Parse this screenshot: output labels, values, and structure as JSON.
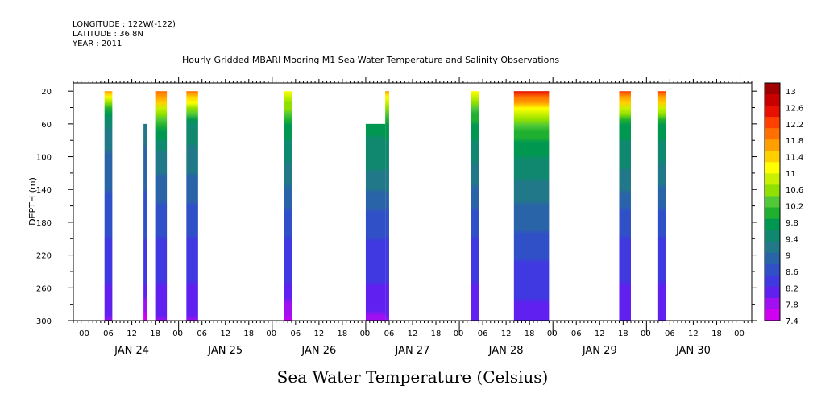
{
  "header": {
    "longitude": "LONGITUDE : 122W(-122)",
    "latitude": "LATITUDE : 36.8N",
    "year": "YEAR : 2011"
  },
  "chart_data": {
    "type": "heatmap",
    "title": "Hourly Gridded MBARI Mooring M1 Sea Water Temperature and Salinity Observations",
    "xlabel": "",
    "ylabel": "DEPTH (m)",
    "colorbar_title": "Sea Water Temperature (Celsius)",
    "y_ticks": [
      20,
      60,
      100,
      140,
      180,
      220,
      260,
      300
    ],
    "ylim": [
      300,
      10
    ],
    "x_hour_ticks": [
      "00",
      "06",
      "12",
      "18"
    ],
    "day_labels": [
      "JAN 24",
      "JAN 25",
      "JAN 26",
      "JAN 27",
      "JAN 28",
      "JAN 29",
      "JAN 30"
    ],
    "colorbar_levels": [
      13,
      12.6,
      12.2,
      11.8,
      11.4,
      11,
      10.6,
      10.2,
      9.8,
      9.4,
      9,
      8.6,
      8.2,
      7.8,
      7.4
    ],
    "colorbar_colors": [
      "#a00000",
      "#c80000",
      "#e81000",
      "#ff4000",
      "#ff7000",
      "#ffa000",
      "#ffd000",
      "#ffff00",
      "#c8f000",
      "#90e000",
      "#50c838",
      "#20b030",
      "#009850",
      "#108870",
      "#207888",
      "#2a64a8",
      "#3050c8",
      "#4038e0",
      "#6020f0",
      "#a010f0",
      "#d000f0"
    ],
    "colorbar_range": [
      7.4,
      13.2
    ],
    "data_blocks": [
      {
        "start": "JAN 24 05:00",
        "end": "JAN 24 07:00",
        "top_depth": 20,
        "profile": [
          [
            20,
            11.8
          ],
          [
            40,
            10.2
          ],
          [
            60,
            9.4
          ],
          [
            100,
            9.0
          ],
          [
            180,
            8.6
          ],
          [
            260,
            8.2
          ],
          [
            300,
            7.9
          ]
        ]
      },
      {
        "start": "JAN 24 15:00",
        "end": "JAN 24 16:00",
        "top_depth": 60,
        "profile": [
          [
            60,
            9.2
          ],
          [
            180,
            8.6
          ],
          [
            260,
            8.2
          ],
          [
            300,
            7.5
          ]
        ]
      },
      {
        "start": "JAN 24 18:00",
        "end": "JAN 24 21:00",
        "top_depth": 20,
        "profile": [
          [
            20,
            12.0
          ],
          [
            40,
            11.0
          ],
          [
            60,
            10.0
          ],
          [
            100,
            9.2
          ],
          [
            180,
            8.6
          ],
          [
            260,
            8.2
          ],
          [
            300,
            7.9
          ]
        ]
      },
      {
        "start": "JAN 25 02:00",
        "end": "JAN 25 05:00",
        "top_depth": 20,
        "profile": [
          [
            20,
            12.0
          ],
          [
            40,
            10.6
          ],
          [
            60,
            9.6
          ],
          [
            100,
            9.2
          ],
          [
            180,
            8.6
          ],
          [
            260,
            8.2
          ],
          [
            300,
            7.9
          ]
        ]
      },
      {
        "start": "JAN 26 03:00",
        "end": "JAN 26 05:00",
        "top_depth": 20,
        "profile": [
          [
            20,
            11.2
          ],
          [
            60,
            9.8
          ],
          [
            120,
            9.2
          ],
          [
            180,
            8.6
          ],
          [
            260,
            8.2
          ],
          [
            300,
            7.6
          ]
        ]
      },
      {
        "start": "JAN 27 00:00",
        "end": "JAN 27 05:00",
        "top_depth": 60,
        "profile": [
          [
            60,
            9.7
          ],
          [
            120,
            9.3
          ],
          [
            180,
            8.6
          ],
          [
            260,
            8.2
          ],
          [
            300,
            7.9
          ]
        ]
      },
      {
        "start": "JAN 27 05:00",
        "end": "JAN 27 06:00",
        "top_depth": 20,
        "profile": [
          [
            20,
            11.6
          ],
          [
            40,
            10.6
          ],
          [
            60,
            9.8
          ],
          [
            120,
            9.3
          ],
          [
            180,
            8.6
          ],
          [
            260,
            8.2
          ],
          [
            300,
            7.9
          ]
        ]
      },
      {
        "start": "JAN 28 03:00",
        "end": "JAN 28 05:00",
        "top_depth": 20,
        "profile": [
          [
            20,
            11.0
          ],
          [
            60,
            9.8
          ],
          [
            120,
            9.2
          ],
          [
            180,
            8.6
          ],
          [
            260,
            8.2
          ],
          [
            300,
            8.0
          ]
        ]
      },
      {
        "start": "JAN 28 14:00",
        "end": "JAN 28 23:00",
        "top_depth": 20,
        "profile": [
          [
            20,
            12.4
          ],
          [
            30,
            11.8
          ],
          [
            50,
            10.6
          ],
          [
            80,
            9.8
          ],
          [
            140,
            9.2
          ],
          [
            200,
            8.7
          ],
          [
            260,
            8.3
          ],
          [
            300,
            8.1
          ]
        ]
      },
      {
        "start": "JAN 29 17:00",
        "end": "JAN 29 20:00",
        "top_depth": 20,
        "profile": [
          [
            20,
            12.2
          ],
          [
            40,
            11.0
          ],
          [
            60,
            9.8
          ],
          [
            120,
            9.3
          ],
          [
            180,
            8.6
          ],
          [
            260,
            8.2
          ],
          [
            300,
            8.0
          ]
        ]
      },
      {
        "start": "JAN 30 03:00",
        "end": "JAN 30 05:00",
        "top_depth": 20,
        "profile": [
          [
            20,
            12.2
          ],
          [
            40,
            11.0
          ],
          [
            60,
            9.8
          ],
          [
            120,
            9.2
          ],
          [
            180,
            8.6
          ],
          [
            260,
            8.2
          ],
          [
            300,
            8.0
          ]
        ]
      }
    ]
  }
}
